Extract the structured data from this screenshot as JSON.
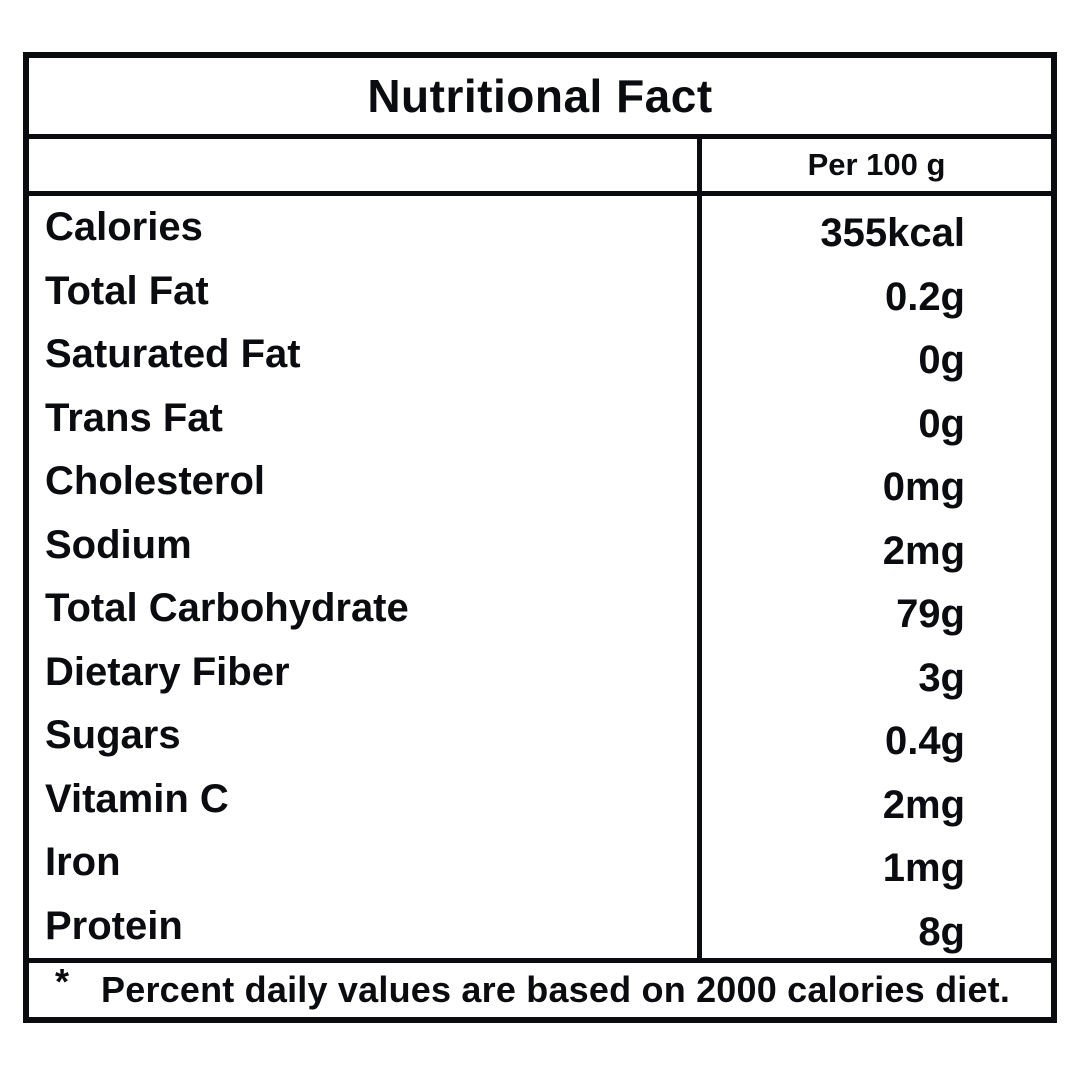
{
  "colors": {
    "ink": "#0b0c10",
    "background": "#ffffff"
  },
  "table": {
    "title": "Nutritional Fact",
    "header": {
      "value_column": "Per 100 g"
    },
    "rows": [
      {
        "label": "Calories",
        "value": "355kcal"
      },
      {
        "label": "Total Fat",
        "value": "0.2g"
      },
      {
        "label": "Saturated Fat",
        "value": "0g"
      },
      {
        "label": "Trans Fat",
        "value": "0g"
      },
      {
        "label": "Cholesterol",
        "value": "0mg"
      },
      {
        "label": "Sodium",
        "value": "2mg"
      },
      {
        "label": "Total Carbohydrate",
        "value": "79g"
      },
      {
        "label": "Dietary Fiber",
        "value": "3g"
      },
      {
        "label": "Sugars",
        "value": "0.4g"
      },
      {
        "label": "Vitamin C",
        "value": "2mg"
      },
      {
        "label": "Iron",
        "value": "1mg"
      },
      {
        "label": "Protein",
        "value": "8g"
      }
    ],
    "footnote": {
      "marker": "*",
      "text": "Percent daily values are based on 2000 calories diet."
    }
  }
}
